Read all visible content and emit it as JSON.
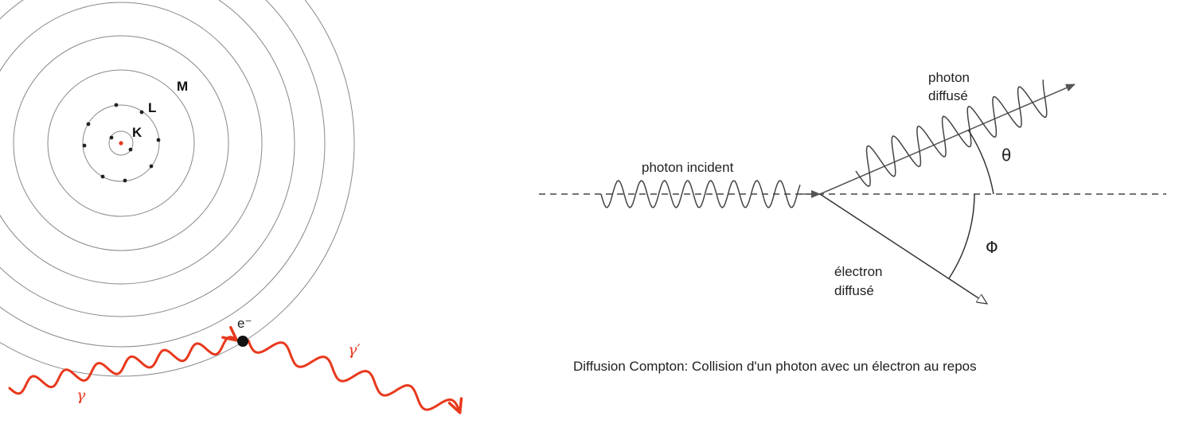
{
  "atom_diagram": {
    "shell_labels": {
      "k": "K",
      "l": "L",
      "m": "M"
    },
    "electron_label": "e⁻",
    "incident_photon_label": "γ",
    "scattered_photon_label": "γ′",
    "photon_color": "#e8391d",
    "nucleus_color": "#e8391d"
  },
  "compton_diagram": {
    "incident_label": "photon incident",
    "scattered_photon_label_line1": "photon",
    "scattered_photon_label_line2": "diffusé",
    "electron_label_line1": "électron",
    "electron_label_line2": "diffusé",
    "theta_label": "θ",
    "phi_label": "Φ",
    "caption": "Diffusion Compton: Collision d'un photon avec un électron au repos"
  }
}
